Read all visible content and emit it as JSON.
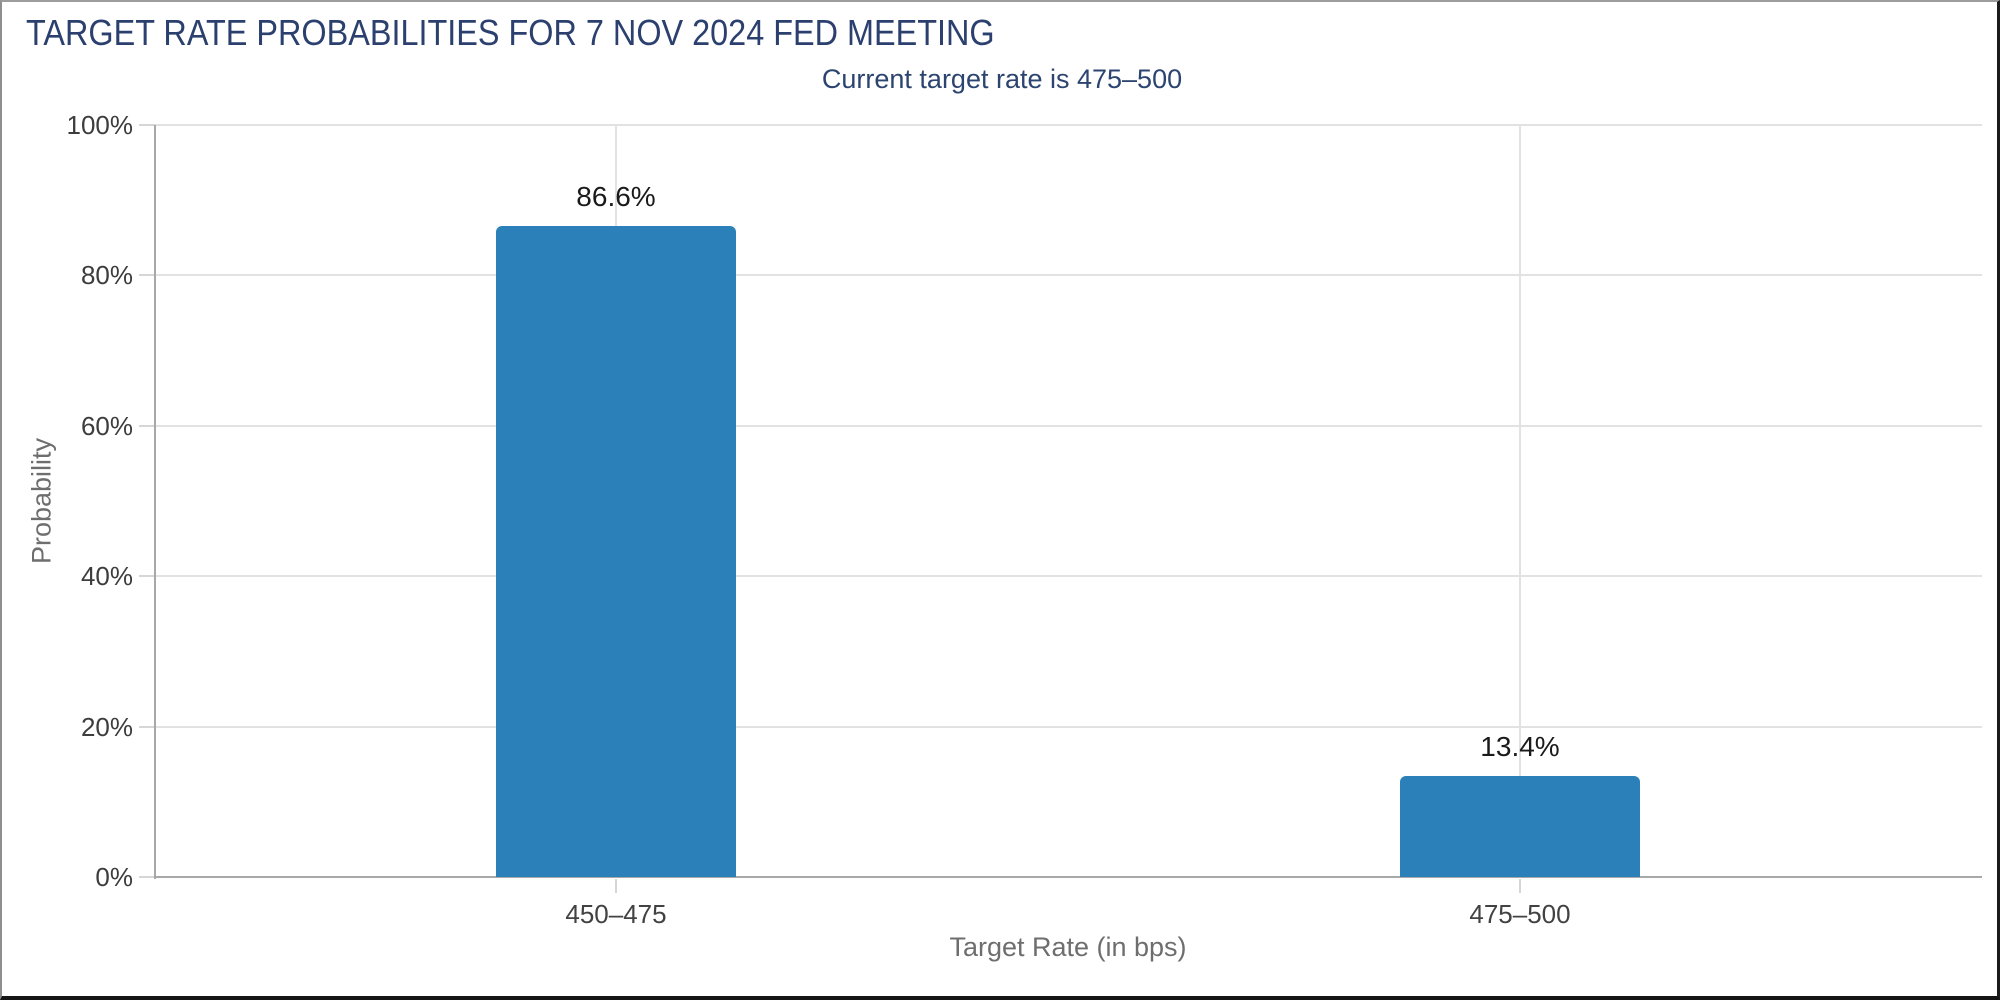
{
  "chart_data": {
    "type": "bar",
    "title": "TARGET RATE PROBABILITIES FOR 7 NOV 2024 FED MEETING",
    "subtitle": "Current target rate is 475–500",
    "xlabel": "Target Rate (in bps)",
    "ylabel": "Probability",
    "categories": [
      "450–475",
      "475–500"
    ],
    "values": [
      86.6,
      13.4
    ],
    "value_labels": [
      "86.6%",
      "13.4%"
    ],
    "ylim": [
      0,
      100
    ],
    "ytick_step": 20,
    "ytick_labels": [
      "0%",
      "20%",
      "40%",
      "60%",
      "80%",
      "100%"
    ],
    "grid": "horizontal gridlines at 20% steps plus full-height vertical gridline at each category center; no legend",
    "colors": {
      "bar": "#2b80b9",
      "title": "#2b406e",
      "subtitle": "#2c4470",
      "axis_title": "#6e6e6e",
      "ytick_label": "#3d3d3d",
      "xtick_label": "#424242",
      "value_label": "#1a1a1a",
      "gridline": "#e2e2e2",
      "axis_line": "#a8a8a8",
      "tick_mark": "#d6d6d6",
      "background": "#ffffff"
    }
  }
}
